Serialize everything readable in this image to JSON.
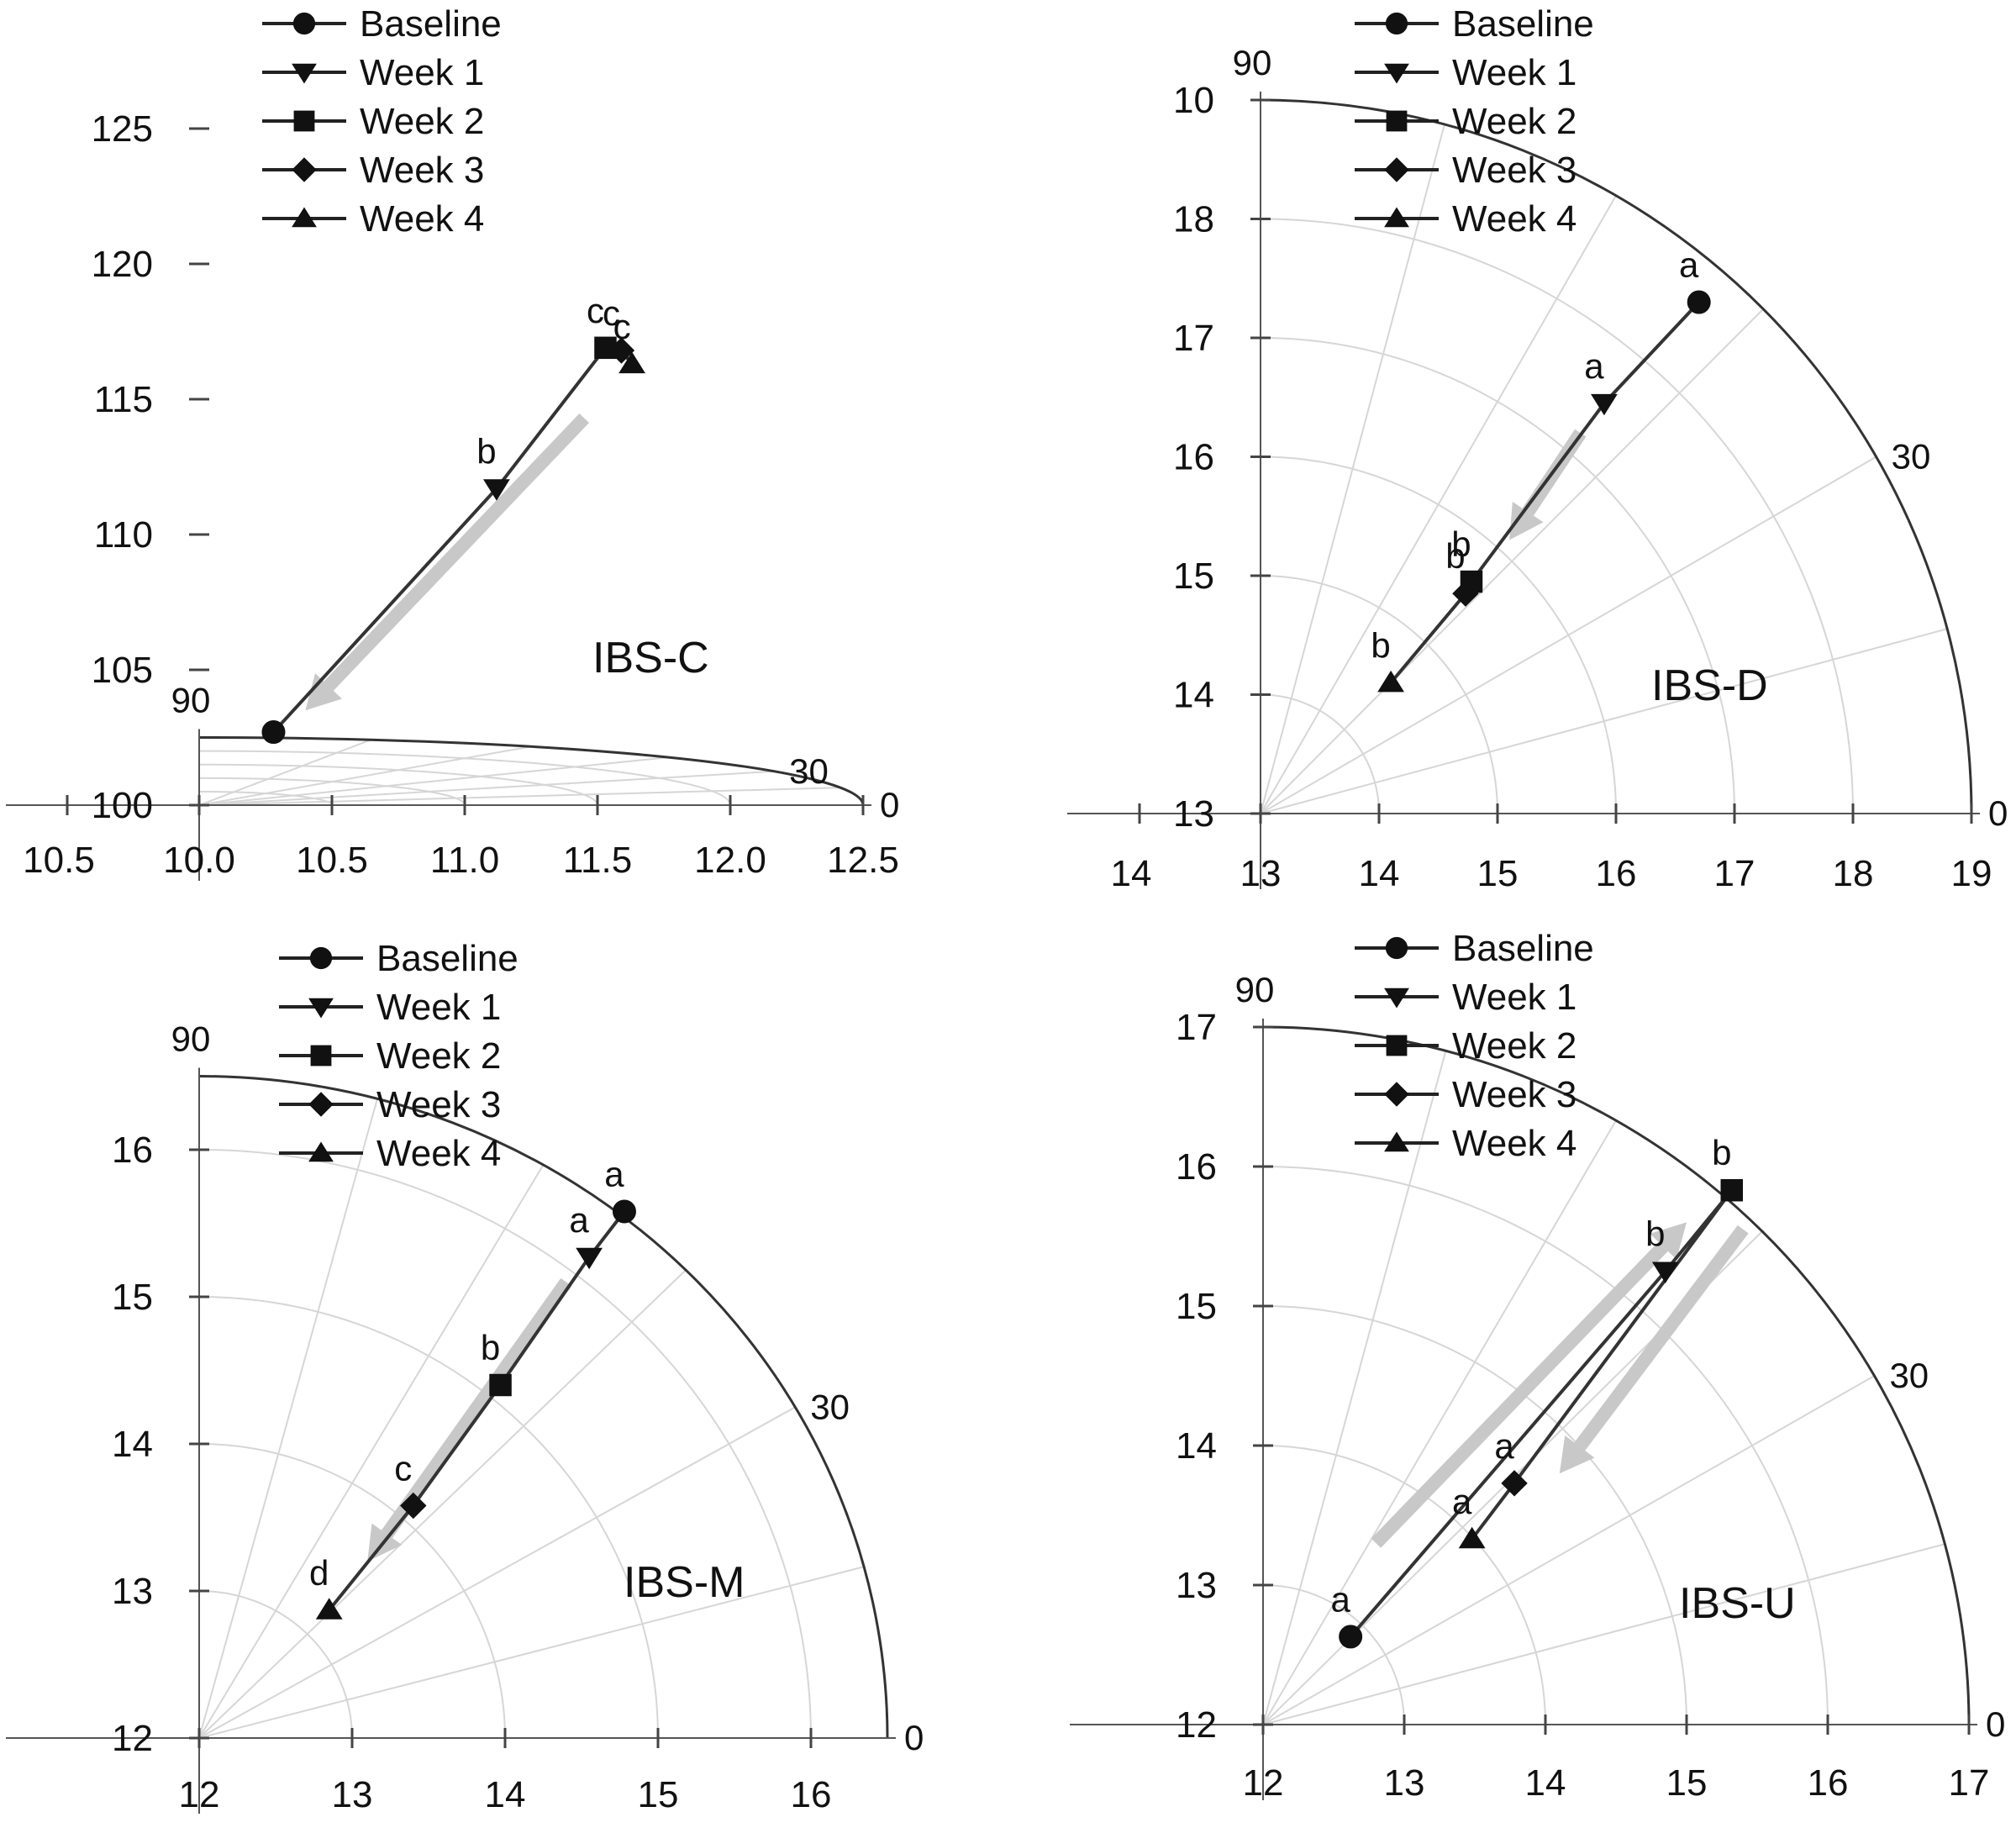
{
  "legend_entries": [
    {
      "label": "Baseline",
      "marker": "circle"
    },
    {
      "label": "Week 1",
      "marker": "triangle-down"
    },
    {
      "label": "Week 2",
      "marker": "square"
    },
    {
      "label": "Week 3",
      "marker": "diamond"
    },
    {
      "label": "Week 4",
      "marker": "triangle-up"
    }
  ],
  "chart_data": [
    {
      "type": "polar-scatter",
      "title": "IBS-C",
      "r_axis": {
        "origin": 10.0,
        "max": 12.5,
        "ticks": [
          10.5,
          11.0,
          11.5,
          12.0,
          12.5
        ],
        "tick_labels": [
          "10.0",
          "10.5",
          "11.0",
          "11.5",
          "12.0",
          "12.5"
        ],
        "extra_left_label": "10.5"
      },
      "y_axis": {
        "ticks": [
          "100",
          "105",
          "110",
          "115",
          "120",
          "125"
        ]
      },
      "angle_range": [
        0,
        90
      ],
      "angle_labels": [
        "0",
        "30",
        "90"
      ],
      "series": [
        {
          "name": "Baseline",
          "x": 10.28,
          "y": 102.7,
          "label": ""
        },
        {
          "name": "Week 1",
          "x": 11.12,
          "y": 111.7,
          "label": "b"
        },
        {
          "name": "Week 2",
          "x": 11.53,
          "y": 116.9,
          "label": "c"
        },
        {
          "name": "Week 3",
          "x": 11.59,
          "y": 116.8,
          "label": "c"
        },
        {
          "name": "Week 4",
          "x": 11.63,
          "y": 116.3,
          "label": "c"
        }
      ],
      "trend_arrow": [
        {
          "from": [
            11.45,
            114.3
          ],
          "to": [
            10.4,
            103.5
          ]
        }
      ]
    },
    {
      "type": "polar-scatter",
      "title": "IBS-D",
      "r_axis": {
        "origin": 13,
        "max": 19,
        "ticks": [
          14,
          15,
          16,
          17,
          18,
          19
        ],
        "tick_labels": [
          "13",
          "14",
          "15",
          "16",
          "17",
          "18",
          "19"
        ],
        "extra_left_label": "14"
      },
      "y_axis": {
        "ticks": [
          "13",
          "14",
          "15",
          "16",
          "17",
          "18",
          "10"
        ]
      },
      "angle_range": [
        0,
        90
      ],
      "angle_labels": [
        "0",
        "30",
        "90"
      ],
      "series": [
        {
          "name": "Baseline",
          "x": 16.7,
          "y": 17.3,
          "label": "a"
        },
        {
          "name": "Week 1",
          "x": 15.9,
          "y": 16.45,
          "label": "a"
        },
        {
          "name": "Week 2",
          "x": 14.78,
          "y": 14.95,
          "label": "b"
        },
        {
          "name": "Week 3",
          "x": 14.73,
          "y": 14.85,
          "label": "b"
        },
        {
          "name": "Week 4",
          "x": 14.1,
          "y": 14.1,
          "label": "b"
        }
      ],
      "trend_arrow": [
        {
          "from": [
            15.7,
            16.2
          ],
          "to": [
            15.1,
            15.3
          ]
        }
      ]
    },
    {
      "type": "polar-scatter",
      "title": "IBS-M",
      "r_axis": {
        "origin": 12,
        "max": 16.5,
        "ticks": [
          13,
          14,
          15,
          16
        ],
        "tick_labels": [
          "12",
          "13",
          "14",
          "15",
          "16"
        ]
      },
      "y_axis": {
        "ticks": [
          "12",
          "13",
          "14",
          "15",
          "16"
        ]
      },
      "angle_range": [
        0,
        90
      ],
      "angle_labels": [
        "0",
        "30",
        "90"
      ],
      "series": [
        {
          "name": "Baseline",
          "x": 14.78,
          "y": 15.58,
          "label": "a"
        },
        {
          "name": "Week 1",
          "x": 14.55,
          "y": 15.27,
          "label": "a"
        },
        {
          "name": "Week 2",
          "x": 13.97,
          "y": 14.4,
          "label": "b"
        },
        {
          "name": "Week 3",
          "x": 13.4,
          "y": 13.58,
          "label": "c"
        },
        {
          "name": "Week 4",
          "x": 12.85,
          "y": 12.87,
          "label": "d"
        }
      ],
      "trend_arrow": [
        {
          "from": [
            14.4,
            15.1
          ],
          "to": [
            13.1,
            13.2
          ]
        }
      ]
    },
    {
      "type": "polar-scatter",
      "title": "IBS-U",
      "r_axis": {
        "origin": 12,
        "max": 17,
        "ticks": [
          13,
          14,
          15,
          16,
          17
        ],
        "tick_labels": [
          "12",
          "13",
          "14",
          "15",
          "16",
          "17"
        ]
      },
      "y_axis": {
        "ticks": [
          "12",
          "13",
          "14",
          "15",
          "16",
          "17"
        ]
      },
      "angle_range": [
        0,
        90
      ],
      "angle_labels": [
        "0",
        "30",
        "90"
      ],
      "series": [
        {
          "name": "Baseline",
          "x": 12.62,
          "y": 12.63,
          "label": "a"
        },
        {
          "name": "Week 1",
          "x": 14.85,
          "y": 15.25,
          "label": "b"
        },
        {
          "name": "Week 2",
          "x": 15.32,
          "y": 15.83,
          "label": "b"
        },
        {
          "name": "Week 3",
          "x": 13.78,
          "y": 13.73,
          "label": "a"
        },
        {
          "name": "Week 4",
          "x": 13.48,
          "y": 13.33,
          "label": "a"
        }
      ],
      "trend_arrow": [
        {
          "from": [
            12.8,
            13.3
          ],
          "to": [
            15.0,
            15.6
          ]
        },
        {
          "from": [
            15.4,
            15.55
          ],
          "to": [
            14.1,
            13.8
          ]
        }
      ]
    }
  ]
}
